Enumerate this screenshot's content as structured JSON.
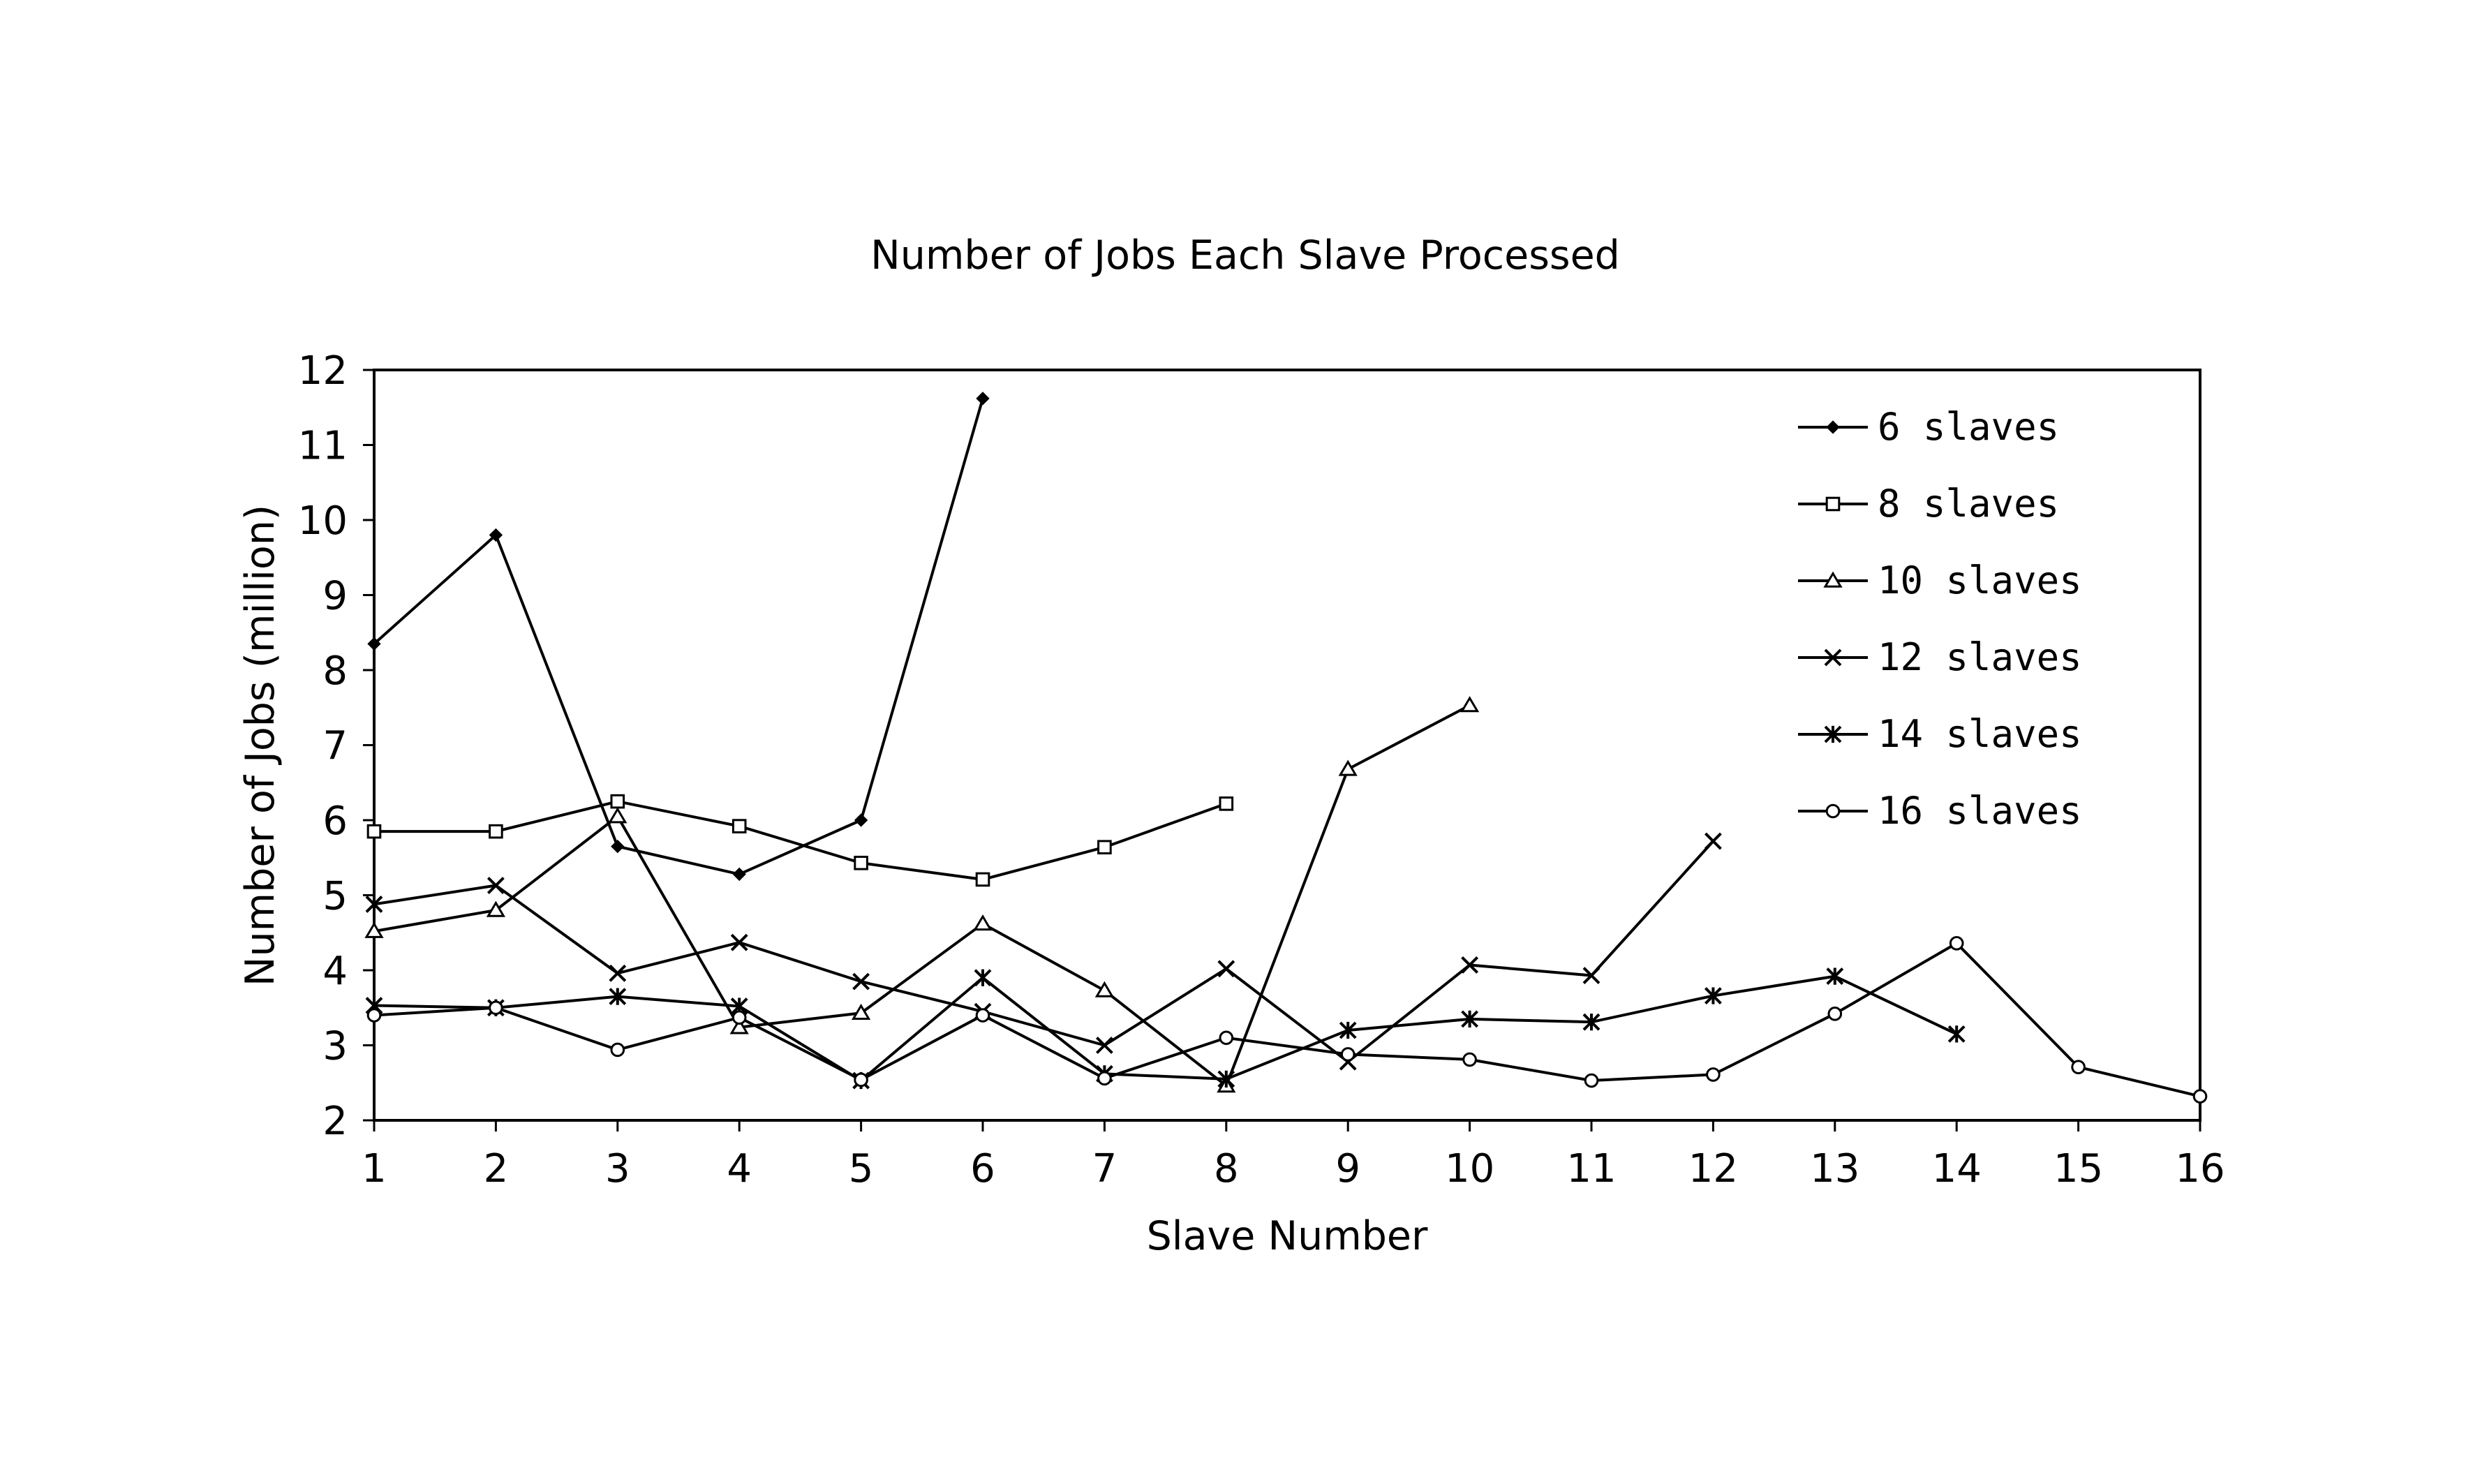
{
  "chart_data": {
    "type": "line",
    "title": "Number of Jobs Each Slave Processed",
    "xlabel": "Slave Number",
    "ylabel": "Number of Jobs (million)",
    "xlim": [
      1,
      16
    ],
    "ylim": [
      2,
      12
    ],
    "x_ticks": [
      "1",
      "2",
      "3",
      "4",
      "5",
      "6",
      "7",
      "8",
      "9",
      "10",
      "11",
      "12",
      "13",
      "14",
      "15",
      "16"
    ],
    "y_ticks": [
      "2",
      "3",
      "4",
      "5",
      "6",
      "7",
      "8",
      "9",
      "10",
      "11",
      "12"
    ],
    "grid": false,
    "legend_position": "top-right",
    "series": [
      {
        "name": "6 slaves",
        "marker": "diamond",
        "values": [
          8.35,
          9.8,
          5.65,
          5.28,
          6.0,
          11.62
        ]
      },
      {
        "name": "8 slaves",
        "marker": "square",
        "values": [
          5.85,
          5.85,
          6.25,
          5.92,
          5.43,
          5.21,
          5.64,
          6.22
        ]
      },
      {
        "name": "10 slaves",
        "marker": "triangle",
        "values": [
          4.52,
          4.8,
          6.05,
          3.24,
          3.43,
          4.62,
          3.73,
          2.46,
          6.68,
          7.53
        ]
      },
      {
        "name": "12 slaves",
        "marker": "x",
        "values": [
          4.88,
          5.13,
          3.96,
          4.37,
          3.85,
          3.45,
          3.0,
          4.02,
          2.78,
          4.07,
          3.93,
          5.72
        ]
      },
      {
        "name": "14 slaves",
        "marker": "asterisk",
        "values": [
          3.53,
          3.5,
          3.65,
          3.52,
          2.53,
          3.9,
          2.62,
          2.55,
          3.2,
          3.35,
          3.31,
          3.66,
          3.92,
          3.15
        ]
      },
      {
        "name": "16 slaves",
        "marker": "circle",
        "values": [
          3.4,
          3.5,
          2.94,
          3.37,
          2.54,
          3.4,
          2.56,
          3.1,
          2.88,
          2.81,
          2.53,
          2.61,
          3.42,
          4.36,
          2.71,
          2.32
        ]
      }
    ]
  }
}
